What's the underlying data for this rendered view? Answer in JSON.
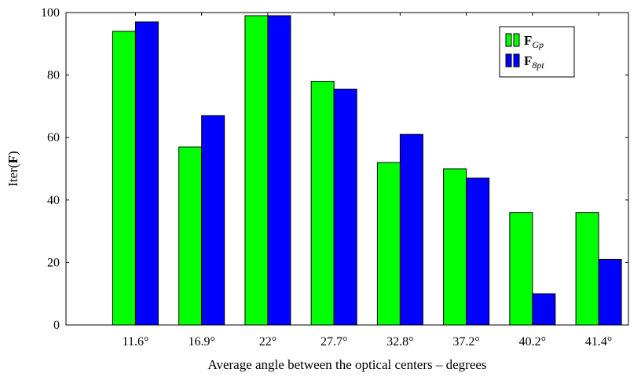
{
  "chart_data": {
    "type": "bar",
    "categories": [
      "11.6°",
      "16.9°",
      "22°",
      "27.7°",
      "32.8°",
      "37.2°",
      "40.2°",
      "41.4°"
    ],
    "series": [
      {
        "name": "F_Gp",
        "color": "#00ff00",
        "values": [
          94,
          57,
          99,
          78,
          52,
          50,
          36,
          36
        ]
      },
      {
        "name": "F_8pt",
        "color": "#0000ff",
        "values": [
          97,
          67,
          99,
          75.5,
          61,
          47,
          10,
          21
        ]
      }
    ],
    "legend_entries": [
      {
        "main": "F",
        "sub": "Gp"
      },
      {
        "main": "F",
        "sub": "8pt"
      }
    ],
    "xlabel": "Average angle between the optical centers – degrees",
    "ylabel": {
      "prefix": "Iter(",
      "bold": "F",
      "suffix": ")"
    },
    "ylim": [
      0,
      100
    ],
    "yticks": [
      0,
      20,
      40,
      60,
      80,
      100
    ],
    "grid": false,
    "legend_position": "top-right"
  }
}
